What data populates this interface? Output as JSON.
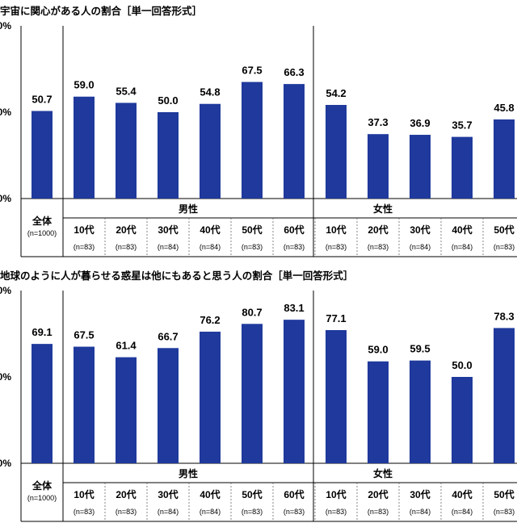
{
  "chart_data": [
    {
      "type": "bar",
      "title": "宇宙に関心がある人の割合［単一回答形式］",
      "ylim": [
        0,
        100
      ],
      "yticks": [
        "0%",
        "0%",
        "0%"
      ],
      "categories": [
        "全体",
        "10代",
        "20代",
        "30代",
        "40代",
        "50代",
        "60代",
        "10代",
        "20代",
        "30代",
        "40代",
        "50代"
      ],
      "n_labels": [
        "(n=1000)",
        "(n=83)",
        "(n=83)",
        "(n=84)",
        "(n=84)",
        "(n=83)",
        "(n=83)",
        "(n=83)",
        "(n=83)",
        "(n=84)",
        "(n=84)",
        "(n=83)"
      ],
      "groups": [
        {
          "name": "男性"
        },
        {
          "name": "女性"
        }
      ],
      "values": [
        50.7,
        59.0,
        55.4,
        50.0,
        54.8,
        67.5,
        66.3,
        54.2,
        37.3,
        36.9,
        35.7,
        45.8
      ],
      "value_labels": [
        "50.7",
        "59.0",
        "55.4",
        "50.0",
        "54.8",
        "67.5",
        "66.3",
        "54.2",
        "37.3",
        "36.9",
        "35.7",
        "45.8"
      ],
      "color": "#1f3a9c",
      "grid": false
    },
    {
      "type": "bar",
      "title": "地球のように人が暮らせる惑星は他にもあると思う人の割合［単一回答形式］",
      "ylim": [
        0,
        100
      ],
      "yticks": [
        "0%",
        "0%",
        "0%"
      ],
      "categories": [
        "全体",
        "10代",
        "20代",
        "30代",
        "40代",
        "50代",
        "60代",
        "10代",
        "20代",
        "30代",
        "40代",
        "50代"
      ],
      "n_labels": [
        "(n=1000)",
        "(n=83)",
        "(n=83)",
        "(n=84)",
        "(n=84)",
        "(n=83)",
        "(n=83)",
        "(n=83)",
        "(n=83)",
        "(n=84)",
        "(n=84)",
        "(n=83)"
      ],
      "groups": [
        {
          "name": "男性"
        },
        {
          "name": "女性"
        }
      ],
      "values": [
        69.1,
        67.5,
        61.4,
        66.7,
        76.2,
        80.7,
        83.1,
        77.1,
        59.0,
        59.5,
        50.0,
        78.3
      ],
      "value_labels": [
        "69.1",
        "67.5",
        "61.4",
        "66.7",
        "76.2",
        "80.7",
        "83.1",
        "77.1",
        "59.0",
        "59.5",
        "50.0",
        "78.3"
      ],
      "color": "#1f3a9c",
      "grid": false
    }
  ]
}
